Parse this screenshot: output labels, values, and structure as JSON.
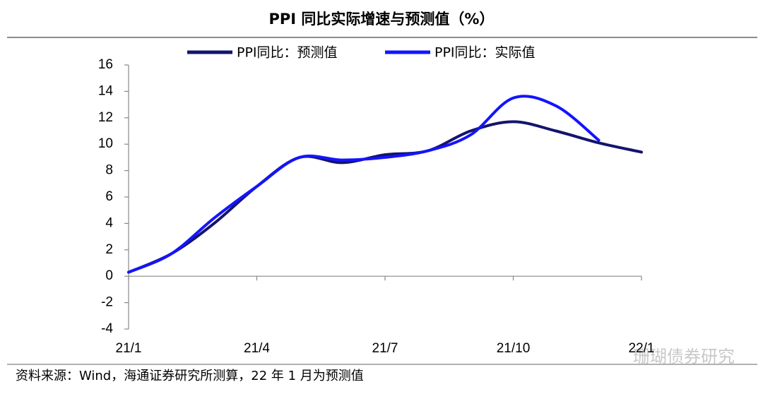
{
  "chart_data": {
    "type": "line",
    "title": "PPI 同比实际增速与预测值（%）",
    "categories": [
      "21/1",
      null,
      null,
      "21/4",
      null,
      null,
      "21/7",
      null,
      null,
      "21/10",
      null,
      null,
      "22/1"
    ],
    "series": [
      {
        "name": "PPI同比：预测值",
        "color": "#14146e",
        "values": [
          0.3,
          1.7,
          4.0,
          6.8,
          9.0,
          8.6,
          9.2,
          9.5,
          11.0,
          11.7,
          11.0,
          10.1,
          9.4
        ]
      },
      {
        "name": "PPI同比：实际值",
        "color": "#1414ff",
        "values": [
          0.3,
          1.7,
          4.4,
          6.8,
          9.0,
          8.8,
          9.0,
          9.5,
          10.7,
          13.5,
          12.9,
          10.3,
          null
        ]
      }
    ],
    "ylim": [
      -4,
      16
    ],
    "yticks": [
      -4,
      -2,
      0,
      2,
      4,
      6,
      8,
      10,
      12,
      14,
      16
    ],
    "source": "资料来源：Wind，海通证券研究所测算，22 年 1 月为预测值",
    "watermark": "珊瑚债券研究"
  }
}
